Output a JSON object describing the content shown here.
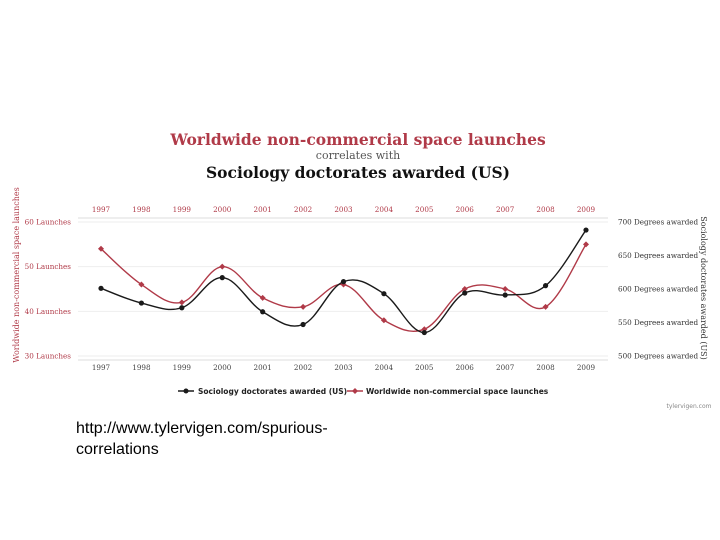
{
  "colors": {
    "red": "#b03a48",
    "black": "#1a1a1a",
    "grid": "#dddddd"
  },
  "caption": "http://www.tylervigen.com/spurious-correlations",
  "credit": "tylervigen.com",
  "chart_data": {
    "type": "line",
    "title": "Worldwide non-commercial space launches",
    "subtitle": "correlates with",
    "title2": "Sociology doctorates awarded (US)",
    "categories": [
      "1997",
      "1998",
      "1999",
      "2000",
      "2001",
      "2002",
      "2003",
      "2004",
      "2005",
      "2006",
      "2007",
      "2008",
      "2009"
    ],
    "x_top_labels": [
      "1997",
      "1998",
      "1999",
      "2000",
      "2001",
      "2002",
      "2003",
      "2004",
      "2005",
      "2006",
      "2007",
      "2008",
      "2009"
    ],
    "x_bottom_labels": [
      "1997",
      "1998",
      "1999",
      "2000",
      "2001",
      "2002",
      "2003",
      "2004",
      "2005",
      "2006",
      "2007",
      "2008",
      "2009"
    ],
    "left_axis": {
      "title": "Worldwide non-commercial space launches",
      "ticks": [
        "30 Launches",
        "40 Launches",
        "50 Launches",
        "60 Launches"
      ],
      "tick_values": [
        30,
        40,
        50,
        60
      ],
      "ylim": [
        30,
        60
      ]
    },
    "right_axis": {
      "title": "Sociology doctorates awarded (US)",
      "ticks": [
        "500 Degrees awarded",
        "550 Degrees awarded",
        "600 Degrees awarded",
        "650 Degrees awarded",
        "700 Degrees awarded"
      ],
      "tick_values": [
        500,
        550,
        600,
        650,
        700
      ],
      "ylim": [
        500,
        700
      ]
    },
    "series": [
      {
        "name": "Worldwide non-commercial space launches",
        "axis": "left",
        "color": "#b03a48",
        "marker": "diamond",
        "values": [
          54,
          46,
          42,
          50,
          43,
          41,
          46,
          38,
          36,
          45,
          45,
          41,
          55
        ]
      },
      {
        "name": "Sociology doctorates awarded (US)",
        "axis": "right",
        "color": "#1a1a1a",
        "marker": "circle",
        "values": [
          601,
          579,
          572,
          617,
          566,
          547,
          611,
          593,
          535,
          594,
          591,
          605,
          688
        ]
      }
    ],
    "legend": {
      "position": "bottom",
      "entries": [
        "Sociology doctorates awarded (US)",
        "Worldwide non-commercial space launches"
      ]
    },
    "grid": true
  }
}
